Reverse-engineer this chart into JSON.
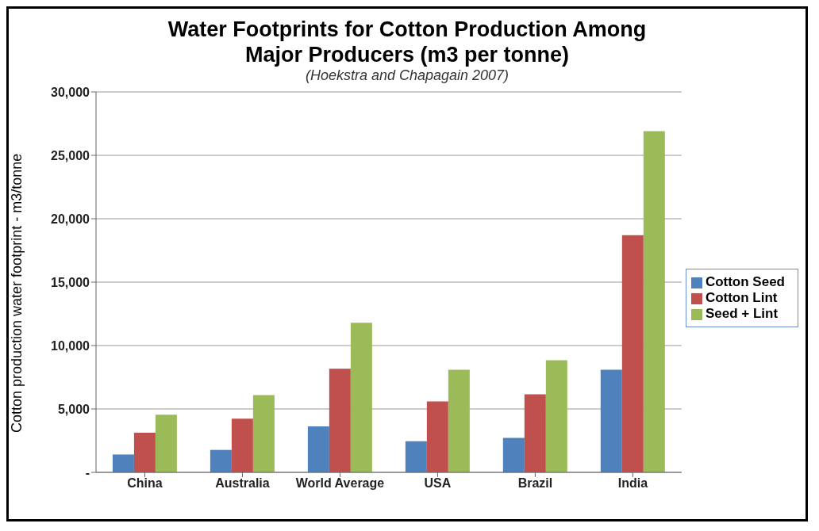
{
  "chart_data": {
    "type": "bar",
    "title": "Water Footprints for Cotton Production Among Major Producers (m3 per tonne)",
    "subtitle": "(Hoekstra and Chapagain 2007)",
    "ylabel": "Cotton production water footprint - m3/tonne",
    "categories": [
      "China",
      "Australia",
      "World Average",
      "USA",
      "Brazil",
      "India"
    ],
    "series": [
      {
        "name": "Cotton Seed",
        "color": "#4f81bd",
        "values": [
          1410,
          1770,
          3630,
          2460,
          2720,
          8100
        ]
      },
      {
        "name": "Cotton Lint",
        "color": "#c0504d",
        "values": [
          3120,
          4230,
          8170,
          5590,
          6150,
          18700
        ]
      },
      {
        "name": "Seed + Lint",
        "color": "#9bbb59",
        "values": [
          4540,
          6090,
          11800,
          8100,
          8850,
          26900
        ]
      }
    ],
    "ylim": [
      0,
      30000
    ],
    "yticks": [
      {
        "value": 0,
        "label": "-"
      },
      {
        "value": 5000,
        "label": "5,000"
      },
      {
        "value": 10000,
        "label": "10,000"
      },
      {
        "value": 15000,
        "label": "15,000"
      },
      {
        "value": 20000,
        "label": "20,000"
      },
      {
        "value": 25000,
        "label": "25,000"
      },
      {
        "value": 30000,
        "label": "30,000"
      }
    ],
    "grid": "y",
    "legend": "right"
  }
}
